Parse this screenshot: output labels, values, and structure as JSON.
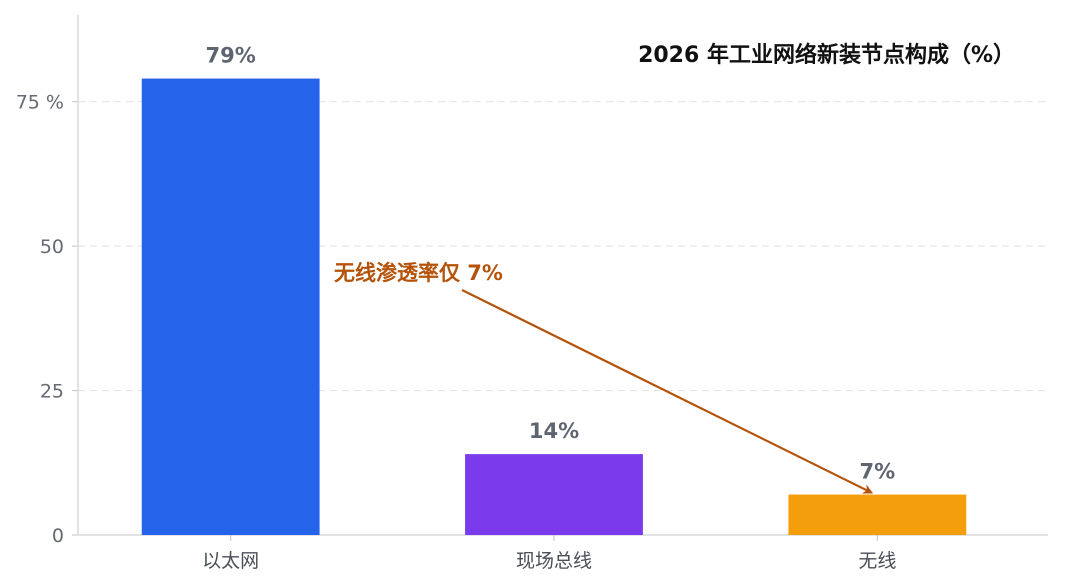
{
  "chart_data": {
    "type": "bar",
    "title": "2026 年工业网络新装节点构成（%）",
    "categories": [
      "以太网",
      "现场总线",
      "无线"
    ],
    "values": [
      79,
      14,
      7
    ],
    "value_labels": [
      "79%",
      "14%",
      "7%"
    ],
    "colors": [
      "#2563eb",
      "#7c3aed",
      "#f59e0b"
    ],
    "ylim": [
      0,
      90
    ],
    "yticks": [
      0,
      25,
      50,
      75
    ],
    "ytick_labels": [
      "0",
      "25",
      "50",
      "75 %"
    ],
    "xlabel": "",
    "ylabel": "",
    "grid": true,
    "annotation": {
      "text": "无线渗透率仅 7%",
      "color": "#b45309",
      "target_category": "无线",
      "target_value": 7
    }
  }
}
